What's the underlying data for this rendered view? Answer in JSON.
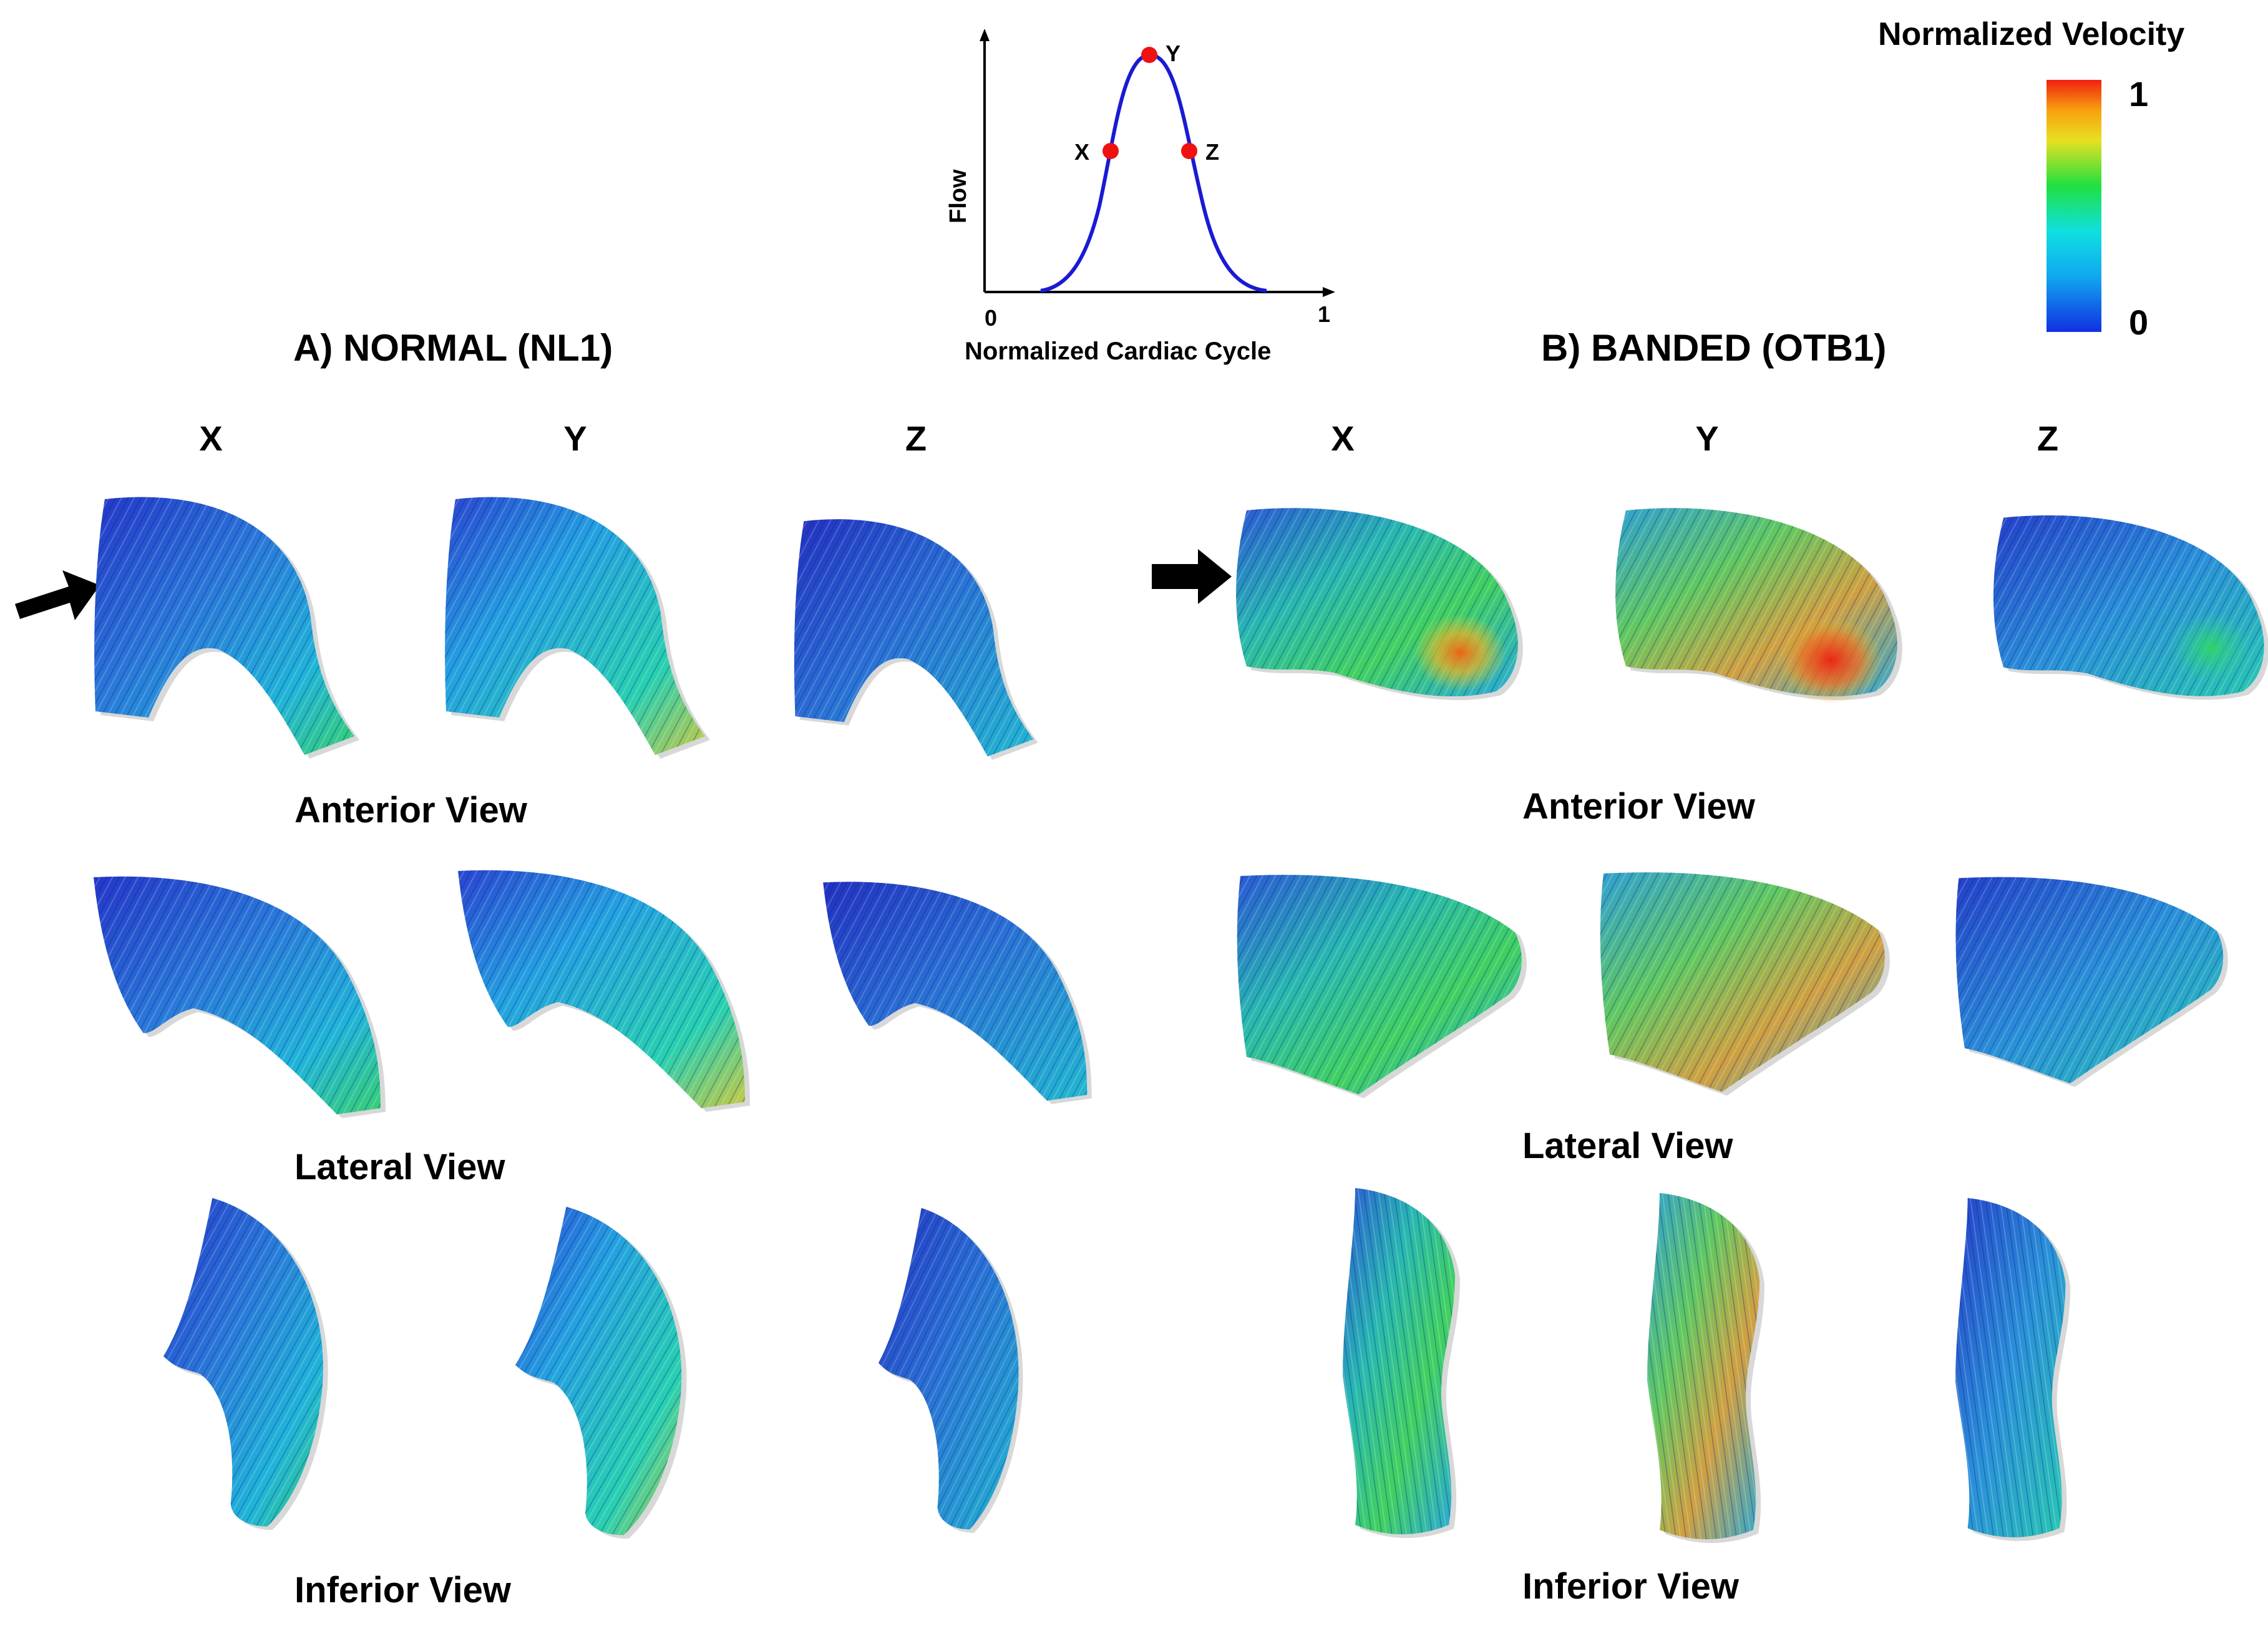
{
  "inset": {
    "y_axis_label": "Flow",
    "x_axis_label": "Normalized Cardiac Cycle",
    "x_tick_start": "0",
    "x_tick_end": "1",
    "points": [
      {
        "label": "X"
      },
      {
        "label": "Y"
      },
      {
        "label": "Z"
      }
    ],
    "curve_color": "#1a1ad4",
    "point_color": "#ee1111"
  },
  "colorbar": {
    "title": "Normalized Velocity",
    "max_label": "1",
    "min_label": "0",
    "colormap": [
      "#1030e0",
      "#10a8f0",
      "#10e0e0",
      "#20e040",
      "#e8e020",
      "#f8a010",
      "#f02010"
    ]
  },
  "panels": [
    {
      "title": "A) NORMAL (NL1)",
      "columns": [
        "X",
        "Y",
        "Z"
      ],
      "views": [
        "Anterior View",
        "Lateral View",
        "Inferior View"
      ]
    },
    {
      "title": "B) BANDED (OTB1)",
      "columns": [
        "X",
        "Y",
        "Z"
      ],
      "views": [
        "Anterior View",
        "Lateral View",
        "Inferior View"
      ]
    }
  ]
}
